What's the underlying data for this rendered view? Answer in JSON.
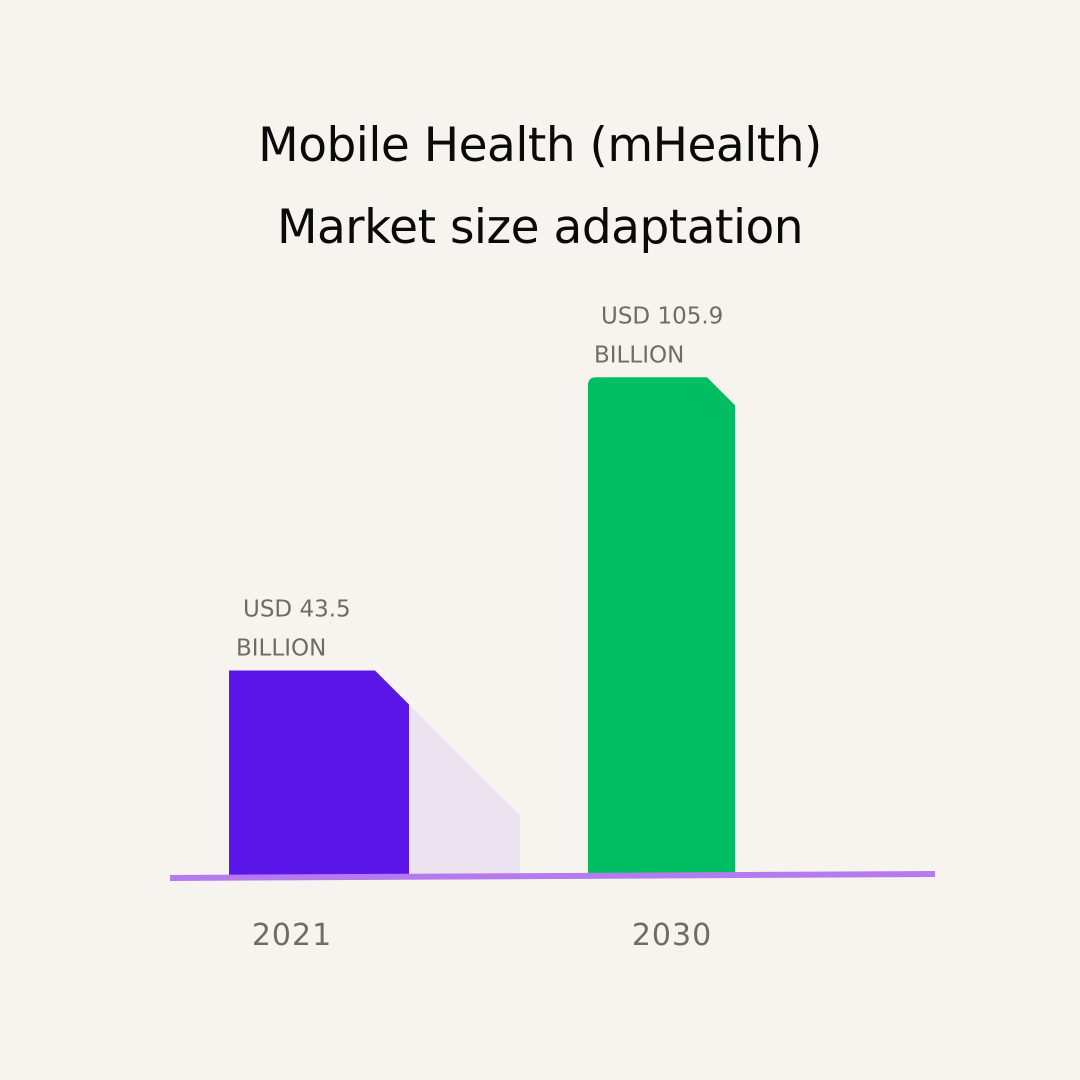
{
  "chart_data": {
    "type": "bar",
    "title_lines": [
      "Mobile Health (mHealth)",
      "Market size adaptation"
    ],
    "categories": [
      "2021",
      "2030"
    ],
    "values": [
      43.5,
      105.9
    ],
    "unit": "USD billion",
    "data_labels": [
      [
        "USD 43.5",
        "BILLION"
      ],
      [
        "USD 105.9",
        "BILLION"
      ]
    ],
    "colors": [
      "#5b16e8",
      "#02be62"
    ],
    "shadow_color": "#ebe3f0",
    "axis_color": "#b57bee",
    "background": "#f7f4ef",
    "grid": false,
    "ylim": [
      0,
      110
    ]
  }
}
